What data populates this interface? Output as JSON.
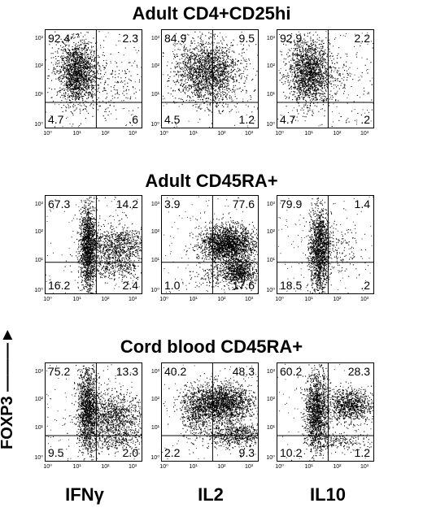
{
  "rows": [
    {
      "title": "Adult CD4+CD25hi",
      "panels": [
        {
          "tl": "92.4",
          "tr": "2.3",
          "bl": "4.7",
          "br": ".6"
        },
        {
          "tl": "84.9",
          "tr": "9.5",
          "bl": "4.5",
          "br": "1.2"
        },
        {
          "tl": "92.9",
          "tr": "2.2",
          "bl": "4.7",
          "br": ".2"
        }
      ]
    },
    {
      "title": "Adult CD45RA+",
      "panels": [
        {
          "tl": "67.3",
          "tr": "14.2",
          "bl": "16.2",
          "br": "2.4"
        },
        {
          "tl": "3.9",
          "tr": "77.6",
          "bl": "1.0",
          "br": "17.6"
        },
        {
          "tl": "79.9",
          "tr": "1.4",
          "bl": "18.5",
          "br": ".2"
        }
      ]
    },
    {
      "title": "Cord blood CD45RA+",
      "panels": [
        {
          "tl": "75.2",
          "tr": "13.3",
          "bl": "9.5",
          "br": "2.0"
        },
        {
          "tl": "40.2",
          "tr": "48.3",
          "bl": "2.2",
          "br": "9.3"
        },
        {
          "tl": "60.2",
          "tr": "28.3",
          "bl": "10.2",
          "br": "1.2"
        }
      ]
    }
  ],
  "y_axis_label": "FOXP3",
  "x_axis_labels": [
    "IFNγ",
    "IL2",
    "IL10"
  ],
  "ticks": [
    "10⁰",
    "10¹",
    "10²",
    "10³"
  ]
}
